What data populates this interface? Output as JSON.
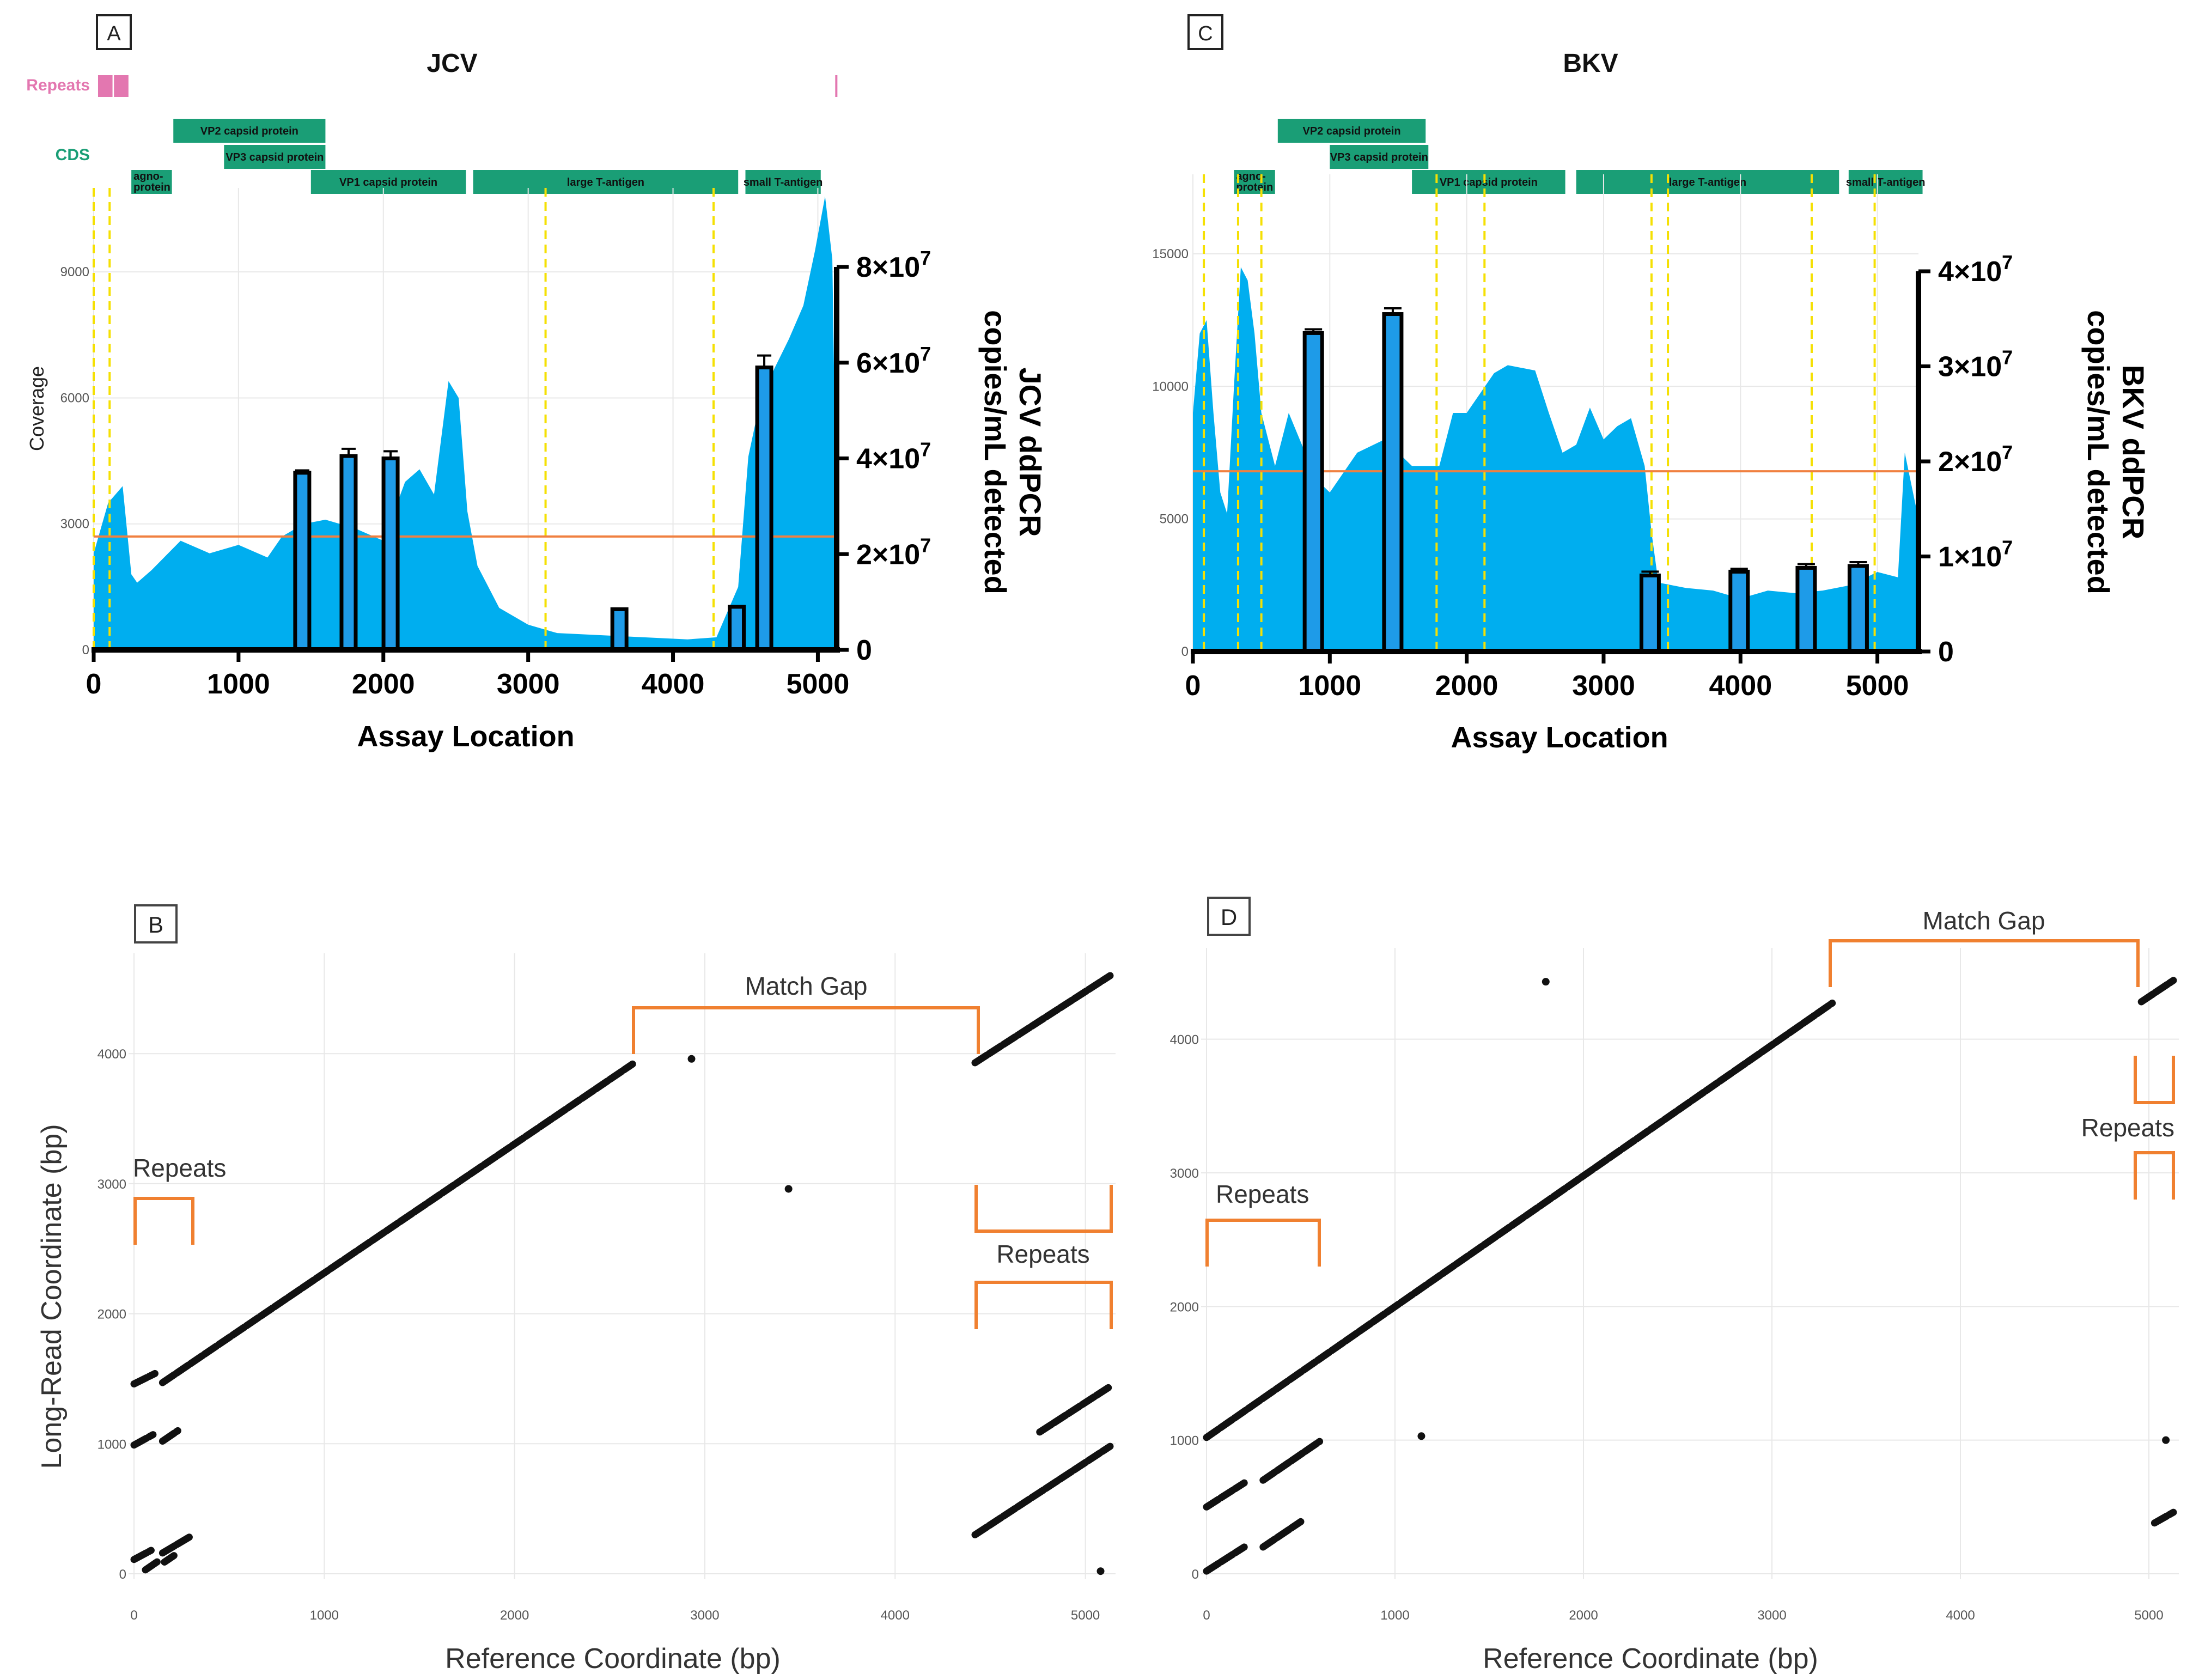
{
  "chart_data": [
    {
      "panel": "A",
      "type": "area",
      "title": "JCV",
      "xlabel": "Assay Location",
      "ylabel_left": "Coverage",
      "ylabel_right": "JCV ddPCR copies/mL detected",
      "xlim": [
        0,
        5130
      ],
      "ylim_left": [
        0,
        11000
      ],
      "ylim_right": [
        0,
        80000000
      ],
      "x_ticks": [
        "0",
        "1000",
        "2000",
        "3000",
        "4000",
        "5000"
      ],
      "y_ticks_left": [
        "0",
        "3000",
        "6000",
        "9000"
      ],
      "y_ticks_right": [
        "0",
        "2×10",
        "4×10",
        "6×10",
        "8×10"
      ],
      "y_tick_exp": "7",
      "track_labels": {
        "repeats": "Repeats",
        "cds": "CDS"
      },
      "repeats": [
        [
          30,
          130
        ],
        [
          140,
          240
        ],
        [
          5120,
          5130
        ]
      ],
      "cds": [
        {
          "label": "VP2 capsid protein",
          "start": 550,
          "end": 1600,
          "row": 0
        },
        {
          "label": "VP3 capsid protein",
          "start": 900,
          "end": 1600,
          "row": 1
        },
        {
          "label": "agno-protein",
          "start": 260,
          "end": 540,
          "row": 2
        },
        {
          "label": "VP1 capsid protein",
          "start": 1500,
          "end": 2570,
          "row": 2
        },
        {
          "label": "large T-antigen",
          "start": 2620,
          "end": 4450,
          "row": 2
        },
        {
          "label": "small T-antigen",
          "start": 4500,
          "end": 5020,
          "row": 2
        }
      ],
      "coverage": {
        "x": [
          0,
          100,
          200,
          260,
          300,
          400,
          600,
          800,
          1000,
          1200,
          1300,
          1450,
          1600,
          1800,
          2000,
          2150,
          2250,
          2350,
          2450,
          2520,
          2580,
          2650,
          2800,
          3000,
          3200,
          3500,
          3800,
          4100,
          4300,
          4450,
          4520,
          4600,
          4700,
          4800,
          4900,
          4980,
          5050,
          5100,
          5130
        ],
        "y": [
          2300,
          3500,
          3900,
          1800,
          1600,
          1900,
          2600,
          2300,
          2500,
          2200,
          2700,
          3000,
          3100,
          2900,
          2600,
          4000,
          4300,
          3700,
          6400,
          6000,
          3300,
          2000,
          1000,
          600,
          400,
          350,
          300,
          250,
          300,
          1500,
          4600,
          5900,
          6700,
          7400,
          8200,
          9500,
          10800,
          9300,
          2500
        ]
      },
      "mean_coverage": 2700,
      "guides": [
        0,
        110,
        3120,
        4280
      ],
      "bars": {
        "x": [
          1440,
          1760,
          2050,
          3630,
          4440,
          4630
        ],
        "values": [
          37000000,
          40500000,
          40000000,
          8500000,
          9000000,
          59000000
        ],
        "err": [
          500000,
          1500000,
          1500000,
          0,
          0,
          2500000
        ]
      }
    },
    {
      "panel": "C",
      "type": "area",
      "title": "BKV",
      "xlabel": "Assay Location",
      "ylabel_left": "",
      "ylabel_right": "BKV ddPCR copies/mL detected",
      "xlim": [
        0,
        5300
      ],
      "ylim_left": [
        0,
        18000
      ],
      "ylim_right": [
        0,
        40000000
      ],
      "x_ticks": [
        "0",
        "1000",
        "2000",
        "3000",
        "4000",
        "5000"
      ],
      "y_ticks_left": [
        "0",
        "5000",
        "10000",
        "15000"
      ],
      "y_ticks_right": [
        "0",
        "1×10",
        "2×10",
        "3×10",
        "4×10"
      ],
      "y_tick_exp": "7",
      "track_labels": {
        "repeats": "",
        "cds": ""
      },
      "repeats": [],
      "cds": [
        {
          "label": "VP2 capsid protein",
          "start": 620,
          "end": 1700,
          "row": 0
        },
        {
          "label": "VP3 capsid protein",
          "start": 1000,
          "end": 1720,
          "row": 1
        },
        {
          "label": "agno-protein",
          "start": 300,
          "end": 600,
          "row": 2
        },
        {
          "label": "VP1 capsid protein",
          "start": 1600,
          "end": 2720,
          "row": 2
        },
        {
          "label": "large T-antigen",
          "start": 2800,
          "end": 4720,
          "row": 2
        },
        {
          "label": "small T-antigen",
          "start": 4790,
          "end": 5330,
          "row": 2
        }
      ],
      "coverage": {
        "x": [
          0,
          50,
          100,
          150,
          200,
          250,
          300,
          350,
          400,
          450,
          500,
          600,
          700,
          900,
          1000,
          1200,
          1400,
          1600,
          1800,
          1900,
          2000,
          2200,
          2300,
          2500,
          2600,
          2700,
          2800,
          2900,
          3000,
          3100,
          3200,
          3300,
          3350,
          3400,
          3600,
          3800,
          4000,
          4200,
          4400,
          4600,
          4800,
          5000,
          5150,
          5200,
          5300
        ],
        "y": [
          9000,
          12000,
          12500,
          9000,
          6000,
          5200,
          10000,
          14500,
          14000,
          12000,
          9000,
          7000,
          9000,
          6500,
          6000,
          7500,
          8000,
          7000,
          7000,
          9000,
          9000,
          10500,
          10800,
          10600,
          9000,
          7500,
          7800,
          9200,
          8000,
          8500,
          8800,
          7000,
          4500,
          2600,
          2400,
          2300,
          2000,
          2300,
          2200,
          2300,
          2500,
          3000,
          2800,
          7500,
          5000
        ]
      },
      "mean_coverage": 6800,
      "guides": [
        80,
        330,
        500,
        1780,
        2130,
        3350,
        3470,
        4520,
        4980
      ],
      "bars": {
        "x": [
          880,
          1460,
          3340,
          3990,
          4480,
          4860
        ],
        "values": [
          33500000,
          35500000,
          8000000,
          8400000,
          8800000,
          9000000
        ],
        "err": [
          400000,
          600000,
          400000,
          300000,
          400000,
          400000
        ]
      }
    },
    {
      "panel": "B",
      "type": "scatter",
      "xlabel": "Reference Coordinate (bp)",
      "ylabel": "Long-Read Coordinate (bp)",
      "xlim": [
        0,
        5130
      ],
      "ylim": [
        0,
        4600
      ],
      "x_ticks": [
        "0",
        "1000",
        "2000",
        "3000",
        "4000",
        "5000"
      ],
      "y_ticks": [
        "0",
        "1000",
        "2000",
        "3000",
        "4000"
      ],
      "segments": [
        {
          "x0": 0,
          "y0": 1460,
          "x1": 110,
          "y1": 1540
        },
        {
          "x0": 150,
          "y0": 1470,
          "x1": 2620,
          "y1": 3920
        },
        {
          "x0": 4420,
          "y0": 3930,
          "x1": 5130,
          "y1": 4600
        },
        {
          "x0": 0,
          "y0": 990,
          "x1": 100,
          "y1": 1070
        },
        {
          "x0": 150,
          "y0": 1020,
          "x1": 230,
          "y1": 1100
        },
        {
          "x0": 0,
          "y0": 110,
          "x1": 90,
          "y1": 180
        },
        {
          "x0": 150,
          "y0": 160,
          "x1": 300,
          "y1": 290
        },
        {
          "x0": 60,
          "y0": 30,
          "x1": 130,
          "y1": 100
        },
        {
          "x0": 160,
          "y0": 90,
          "x1": 210,
          "y1": 140
        },
        {
          "x0": 4420,
          "y0": 300,
          "x1": 5130,
          "y1": 980
        },
        {
          "x0": 4760,
          "y0": 1090,
          "x1": 5130,
          "y1": 1440
        }
      ],
      "points": [
        [
          2930,
          3960
        ],
        [
          3440,
          2960
        ],
        [
          5080,
          20
        ]
      ],
      "annotations": {
        "match_gap": "Match Gap",
        "repeats_left": "Repeats",
        "repeats_right": "Repeats"
      }
    },
    {
      "panel": "D",
      "type": "scatter",
      "xlabel": "Reference Coordinate (bp)",
      "ylabel": "",
      "xlim": [
        0,
        5130
      ],
      "ylim": [
        0,
        4500
      ],
      "x_ticks": [
        "0",
        "1000",
        "2000",
        "3000",
        "4000",
        "5000"
      ],
      "y_ticks": [
        "0",
        "1000",
        "2000",
        "3000",
        "4000"
      ],
      "segments": [
        {
          "x0": 0,
          "y0": 1020,
          "x1": 3320,
          "y1": 4270
        },
        {
          "x0": 4960,
          "y0": 4280,
          "x1": 5130,
          "y1": 4440
        },
        {
          "x0": 0,
          "y0": 500,
          "x1": 200,
          "y1": 680
        },
        {
          "x0": 300,
          "y0": 700,
          "x1": 600,
          "y1": 990
        },
        {
          "x0": 0,
          "y0": 20,
          "x1": 200,
          "y1": 200
        },
        {
          "x0": 300,
          "y0": 200,
          "x1": 500,
          "y1": 390
        },
        {
          "x0": 5030,
          "y0": 380,
          "x1": 5130,
          "y1": 460
        }
      ],
      "points": [
        [
          1800,
          4430
        ],
        [
          1140,
          1030
        ],
        [
          5090,
          1000
        ]
      ],
      "annotations": {
        "match_gap": "Match Gap",
        "repeats_left": "Repeats",
        "repeats_right": "Repeats"
      }
    }
  ],
  "panel_labels": {
    "a": "A",
    "b": "B",
    "c": "C",
    "d": "D"
  },
  "colors": {
    "area": "#00AEEF",
    "mean_line": "#F08040",
    "guides": "#F5E003",
    "cds": "#1A9E76",
    "repeats": "#E377B0",
    "bracket": "#F08030",
    "points": "#111111",
    "grid": "#E8E8E8"
  }
}
